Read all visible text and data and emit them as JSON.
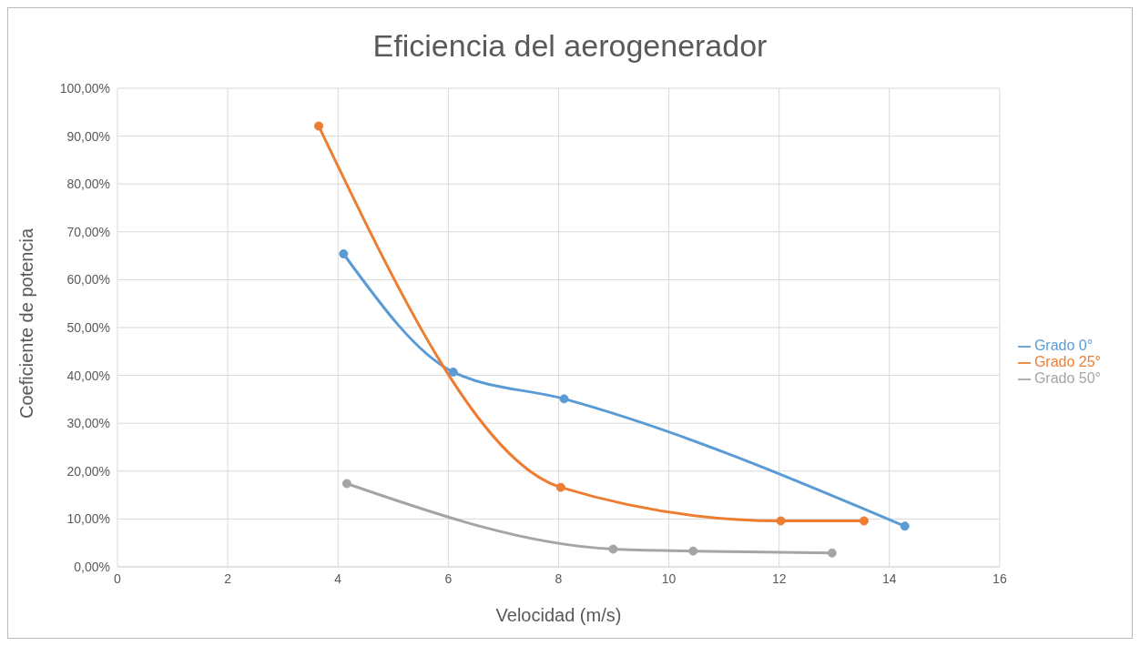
{
  "chart_data": {
    "type": "line",
    "title": "Eficiencia del aerogenerador",
    "xlabel": "Velocidad (m/s)",
    "ylabel": "Coeficiente de potencia",
    "series": [
      {
        "name": "Grado 0°",
        "color": "#5b9bd5",
        "x": [
          4.1,
          6.09,
          8.1,
          14.28
        ],
        "values": [
          65.4,
          40.7,
          35.1,
          8.5
        ]
      },
      {
        "name": "Grado 25°",
        "color": "#ed7d31",
        "x": [
          3.65,
          8.04,
          12.03,
          13.54
        ],
        "values": [
          92.1,
          16.6,
          9.6,
          9.6
        ]
      },
      {
        "name": "Grado 50°",
        "color": "#a5a5a5",
        "x": [
          4.16,
          8.99,
          10.44,
          12.96
        ],
        "values": [
          17.4,
          3.7,
          3.3,
          2.9
        ]
      }
    ],
    "xlim": [
      0,
      16
    ],
    "xticks": [
      0,
      2,
      4,
      6,
      8,
      10,
      12,
      14,
      16
    ],
    "ylim": [
      0,
      100
    ],
    "yticks": [
      {
        "value": 0,
        "label": "0,00%"
      },
      {
        "value": 10,
        "label": "10,00%"
      },
      {
        "value": 20,
        "label": "20,00%"
      },
      {
        "value": 30,
        "label": "30,00%"
      },
      {
        "value": 40,
        "label": "40,00%"
      },
      {
        "value": 50,
        "label": "50,00%"
      },
      {
        "value": 60,
        "label": "60,00%"
      },
      {
        "value": 70,
        "label": "70,00%"
      },
      {
        "value": 80,
        "label": "80,00%"
      },
      {
        "value": 90,
        "label": "90,00%"
      },
      {
        "value": 100,
        "label": "100,00%"
      }
    ],
    "grid": true,
    "legend": "right",
    "marker": "circle",
    "line_style": "solid"
  }
}
